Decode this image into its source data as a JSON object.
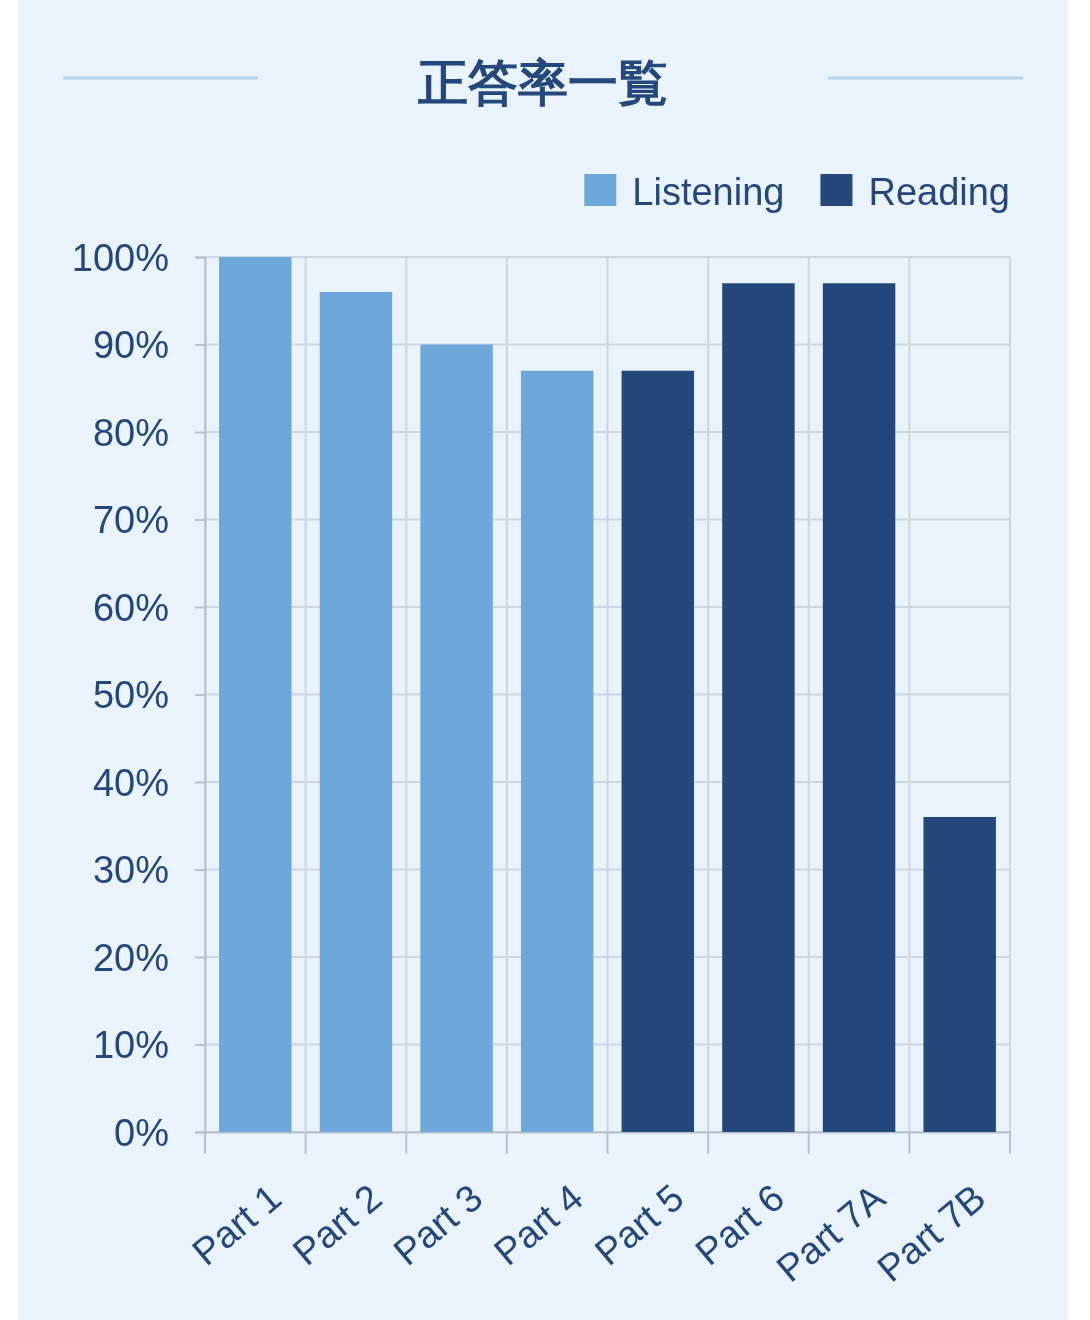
{
  "chart_data": {
    "type": "bar",
    "title": "正答率一覧",
    "categories": [
      "Part 1",
      "Part 2",
      "Part 3",
      "Part 4",
      "Part 5",
      "Part 6",
      "Part 7A",
      "Part 7B"
    ],
    "series": [
      {
        "name": "Listening",
        "color": "#6ea7da",
        "values": [
          100,
          96,
          90,
          87,
          null,
          null,
          null,
          null
        ]
      },
      {
        "name": "Reading",
        "color": "#24487c",
        "values": [
          null,
          null,
          null,
          null,
          87,
          97,
          97,
          36
        ]
      }
    ],
    "ylim": [
      0,
      100
    ],
    "yticks": [
      {
        "value": 0,
        "label": "0%"
      },
      {
        "value": 10,
        "label": "10%"
      },
      {
        "value": 20,
        "label": "20%"
      },
      {
        "value": 30,
        "label": "30%"
      },
      {
        "value": 40,
        "label": "40%"
      },
      {
        "value": 50,
        "label": "50%"
      },
      {
        "value": 60,
        "label": "60%"
      },
      {
        "value": 70,
        "label": "70%"
      },
      {
        "value": 80,
        "label": "80%"
      },
      {
        "value": 90,
        "label": "90%"
      },
      {
        "value": 100,
        "label": "100%"
      }
    ],
    "grid": true,
    "legend": "top right"
  }
}
